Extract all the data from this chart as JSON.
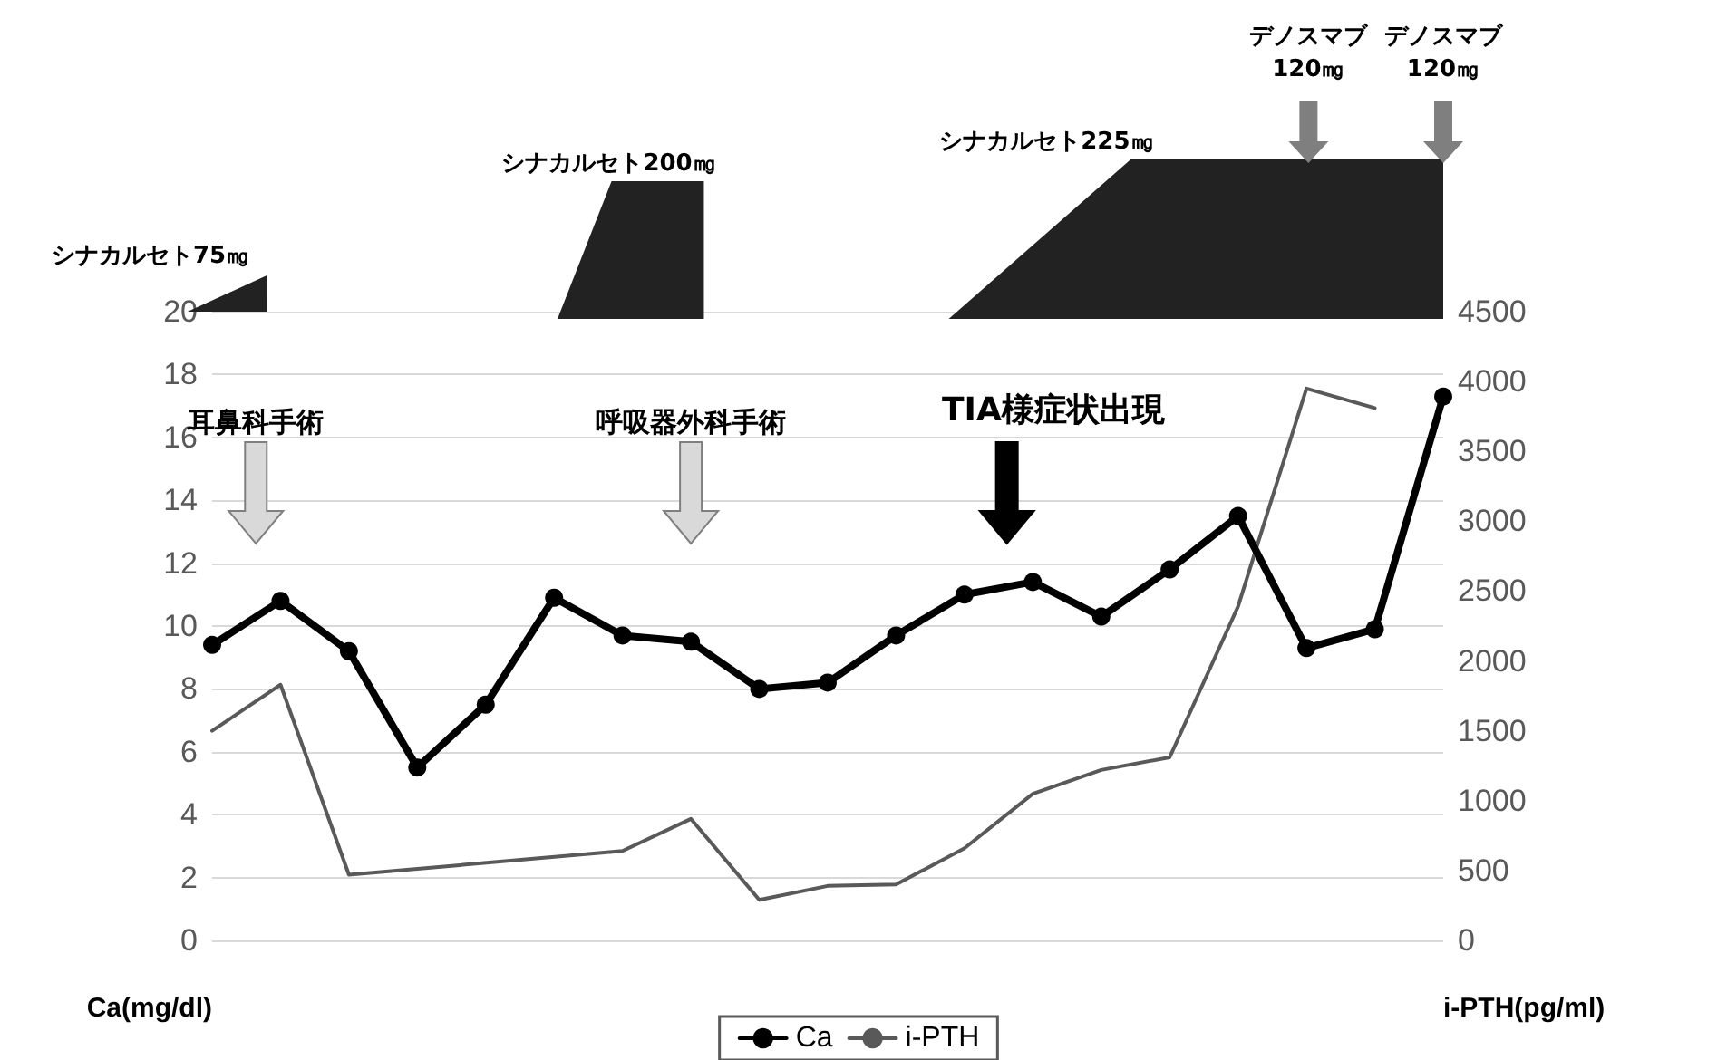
{
  "chart_data": {
    "type": "line",
    "ylabel": "Ca(mg/dl)",
    "y2label": "i-PTH(pg/ml)",
    "categories": [
      null,
      null,
      null,
      null,
      null,
      null,
      null,
      null,
      null,
      null,
      null,
      null,
      null,
      null,
      null,
      null,
      null,
      null,
      null
    ],
    "series": [
      {
        "name": "Ca",
        "color": "#000000",
        "marker": "circle",
        "values": [
          9.4,
          10.8,
          9.2,
          5.5,
          7.5,
          10.9,
          9.7,
          9.5,
          8.0,
          8.2,
          9.7,
          11.0,
          11.4,
          10.3,
          11.8,
          13.5,
          9.3,
          9.9,
          17.3
        ]
      },
      {
        "name": "i-PTH",
        "color": "#595959",
        "axis": "y2",
        "marker": "none",
        "values": [
          1500,
          1830,
          470,
          null,
          null,
          null,
          640,
          870,
          290,
          390,
          400,
          660,
          1050,
          1220,
          1310,
          2390,
          3950,
          3810,
          null
        ]
      }
    ],
    "ylim": [
      0,
      20
    ],
    "yticks": [
      0,
      2,
      4,
      6,
      8,
      10,
      12,
      14,
      16,
      18,
      20
    ],
    "y2lim": [
      0,
      4500
    ],
    "y2ticks": [
      0,
      500,
      1000,
      1500,
      2000,
      2500,
      3000,
      3500,
      4000,
      4500
    ],
    "grid": "y",
    "legend": "bottom",
    "line_style": "solid",
    "annotations": [
      "耳鼻科手術",
      "呼吸器外科手術",
      "TIA様症状出現",
      "シナカルセト75㎎",
      "シナカルセト200㎎",
      "シナカルセト225㎎",
      "デノスマブ\n120㎎",
      "デノスマブ\n120㎎"
    ]
  }
}
